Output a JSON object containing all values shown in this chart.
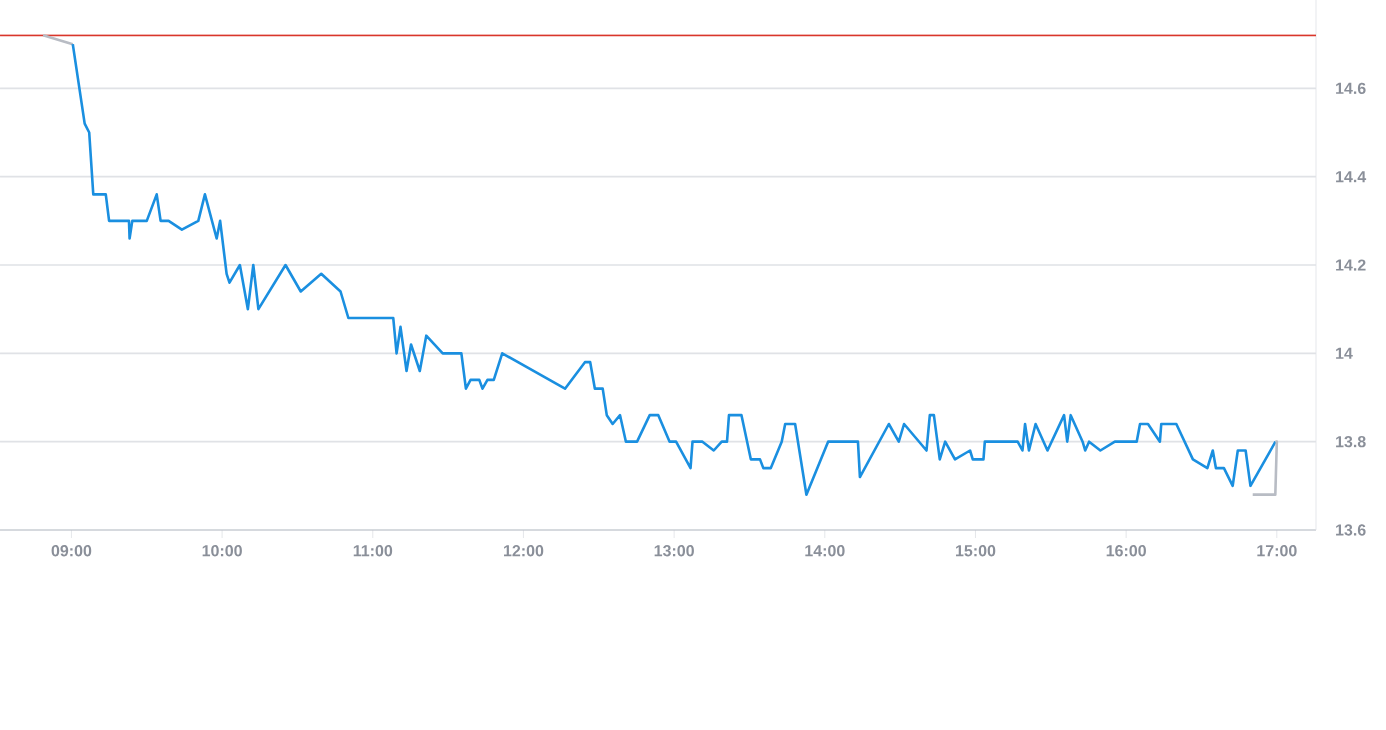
{
  "chart_data": {
    "type": "line",
    "xlim": [
      8.526,
      17.26
    ],
    "ylim": [
      13.6,
      14.8
    ],
    "xticks": [
      {
        "value": 9,
        "label": "09:00"
      },
      {
        "value": 10,
        "label": "10:00"
      },
      {
        "value": 11,
        "label": "11:00"
      },
      {
        "value": 12,
        "label": "12:00"
      },
      {
        "value": 13,
        "label": "13:00"
      },
      {
        "value": 14,
        "label": "14:00"
      },
      {
        "value": 15,
        "label": "15:00"
      },
      {
        "value": 16,
        "label": "16:00"
      },
      {
        "value": 17,
        "label": "17:00"
      }
    ],
    "yticks": [
      13.6,
      13.8,
      14,
      14.2,
      14.4,
      14.6
    ],
    "grid": "y",
    "marker": "none",
    "line_style": "solid",
    "ref_lines": [
      {
        "axis": "y",
        "value": 14.72,
        "color": "#d9362b"
      }
    ],
    "series": [
      {
        "color": "#b8bcc4",
        "x": [
          8.812,
          9.009
        ],
        "values": [
          14.72,
          14.7
        ]
      },
      {
        "color": "#1a8fe0",
        "x": [
          9.009,
          9.088,
          9.118,
          9.145,
          9.228,
          9.25,
          9.382,
          9.386,
          9.404,
          9.5,
          9.566,
          9.592,
          9.645,
          9.733,
          9.842,
          9.886,
          9.964,
          9.987,
          10.03,
          10.049,
          10.118,
          10.171,
          10.207,
          10.241,
          10.421,
          10.522,
          10.658,
          10.786,
          10.838,
          11.136,
          11.158,
          11.184,
          11.224,
          11.254,
          11.312,
          11.355,
          11.464,
          11.588,
          11.618,
          11.649,
          11.707,
          11.728,
          11.761,
          11.803,
          11.859,
          12.276,
          12.408,
          12.443,
          12.474,
          12.526,
          12.553,
          12.592,
          12.641,
          12.68,
          12.754,
          12.838,
          12.895,
          12.97,
          13.013,
          13.109,
          13.122,
          13.188,
          13.263,
          13.316,
          13.351,
          13.364,
          13.447,
          13.509,
          13.57,
          13.592,
          13.641,
          13.714,
          13.737,
          13.803,
          13.878,
          14.022,
          14.22,
          14.233,
          14.425,
          14.491,
          14.526,
          14.675,
          14.697,
          14.724,
          14.763,
          14.799,
          14.864,
          14.964,
          14.982,
          15.053,
          15.062,
          15.28,
          15.312,
          15.329,
          15.355,
          15.399,
          15.478,
          15.588,
          15.609,
          15.632,
          15.711,
          15.728,
          15.754,
          15.829,
          15.925,
          16.07,
          16.092,
          16.145,
          16.224,
          16.233,
          16.333,
          16.443,
          16.539,
          16.575,
          16.596,
          16.649,
          16.707,
          16.741,
          16.793,
          16.825,
          16.991
        ],
        "values": [
          14.7,
          14.52,
          14.5,
          14.36,
          14.36,
          14.3,
          14.3,
          14.26,
          14.3,
          14.3,
          14.36,
          14.3,
          14.3,
          14.28,
          14.3,
          14.36,
          14.26,
          14.3,
          14.18,
          14.16,
          14.2,
          14.1,
          14.2,
          14.1,
          14.2,
          14.14,
          14.18,
          14.14,
          14.08,
          14.08,
          14.0,
          14.06,
          13.96,
          14.02,
          13.96,
          14.04,
          14.0,
          14.0,
          13.92,
          13.94,
          13.94,
          13.92,
          13.94,
          13.94,
          14.0,
          13.92,
          13.98,
          13.98,
          13.92,
          13.92,
          13.86,
          13.84,
          13.86,
          13.8,
          13.8,
          13.86,
          13.86,
          13.8,
          13.8,
          13.74,
          13.8,
          13.8,
          13.78,
          13.8,
          13.8,
          13.86,
          13.86,
          13.76,
          13.76,
          13.74,
          13.74,
          13.8,
          13.84,
          13.84,
          13.68,
          13.8,
          13.8,
          13.72,
          13.84,
          13.8,
          13.84,
          13.78,
          13.86,
          13.86,
          13.76,
          13.8,
          13.76,
          13.78,
          13.76,
          13.76,
          13.8,
          13.8,
          13.78,
          13.84,
          13.78,
          13.84,
          13.78,
          13.86,
          13.8,
          13.86,
          13.8,
          13.78,
          13.8,
          13.78,
          13.8,
          13.8,
          13.84,
          13.84,
          13.8,
          13.84,
          13.84,
          13.76,
          13.74,
          13.78,
          13.74,
          13.74,
          13.7,
          13.78,
          13.78,
          13.7,
          13.8
        ]
      },
      {
        "color": "#b8bcc4",
        "x": [
          16.991,
          17.0,
          16.99,
          16.84
        ],
        "values": [
          13.8,
          13.8,
          13.68,
          13.68
        ]
      }
    ]
  }
}
